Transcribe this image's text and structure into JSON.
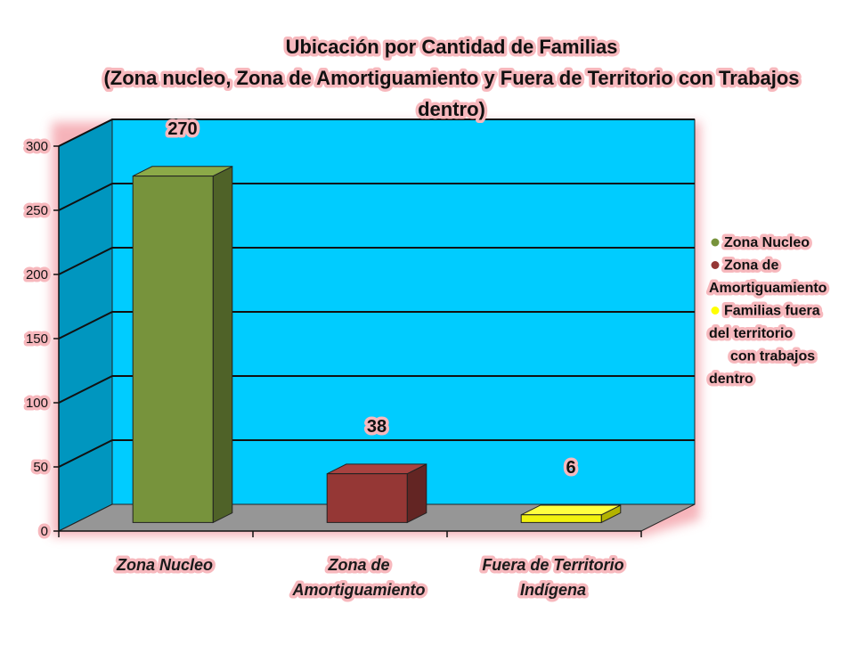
{
  "chart_data": {
    "type": "bar",
    "title_lines": [
      "Ubicación por Cantidad de Familias",
      "(Zona nucleo, Zona de Amortiguamiento y Fuera de Territorio con Trabajos",
      "dentro)"
    ],
    "categories": [
      [
        "Zona Nucleo"
      ],
      [
        "Zona de",
        "Amortiguamiento"
      ],
      [
        "Fuera de Territorio",
        "Indígena"
      ]
    ],
    "values": [
      270,
      38,
      6
    ],
    "data_labels": [
      "270",
      "38",
      "6"
    ],
    "ylim": [
      0,
      300
    ],
    "yticks": [
      "0",
      "50",
      "100",
      "150",
      "200",
      "250",
      "300"
    ],
    "grid": true,
    "legend_position": "right",
    "legend": [
      {
        "lines": [
          "Zona Nucleo"
        ],
        "color": "#77933c"
      },
      {
        "lines": [
          "Zona de",
          "Amortiguamiento"
        ],
        "color": "#953735"
      },
      {
        "lines": [
          "Familias fuera",
          "del territorio",
          "con trabajos",
          "dentro"
        ],
        "color": "#ffff00"
      }
    ],
    "colors": {
      "back_wall": "#00ccff",
      "side_wall": "#0096bf",
      "floor": "#969696",
      "bar_front": [
        "#77933c",
        "#953735",
        "#f2f20d"
      ],
      "bar_side": [
        "#4f6228",
        "#632523",
        "#b3b300"
      ],
      "bar_top": [
        "#8caa48",
        "#a94240",
        "#ffff40"
      ]
    }
  }
}
